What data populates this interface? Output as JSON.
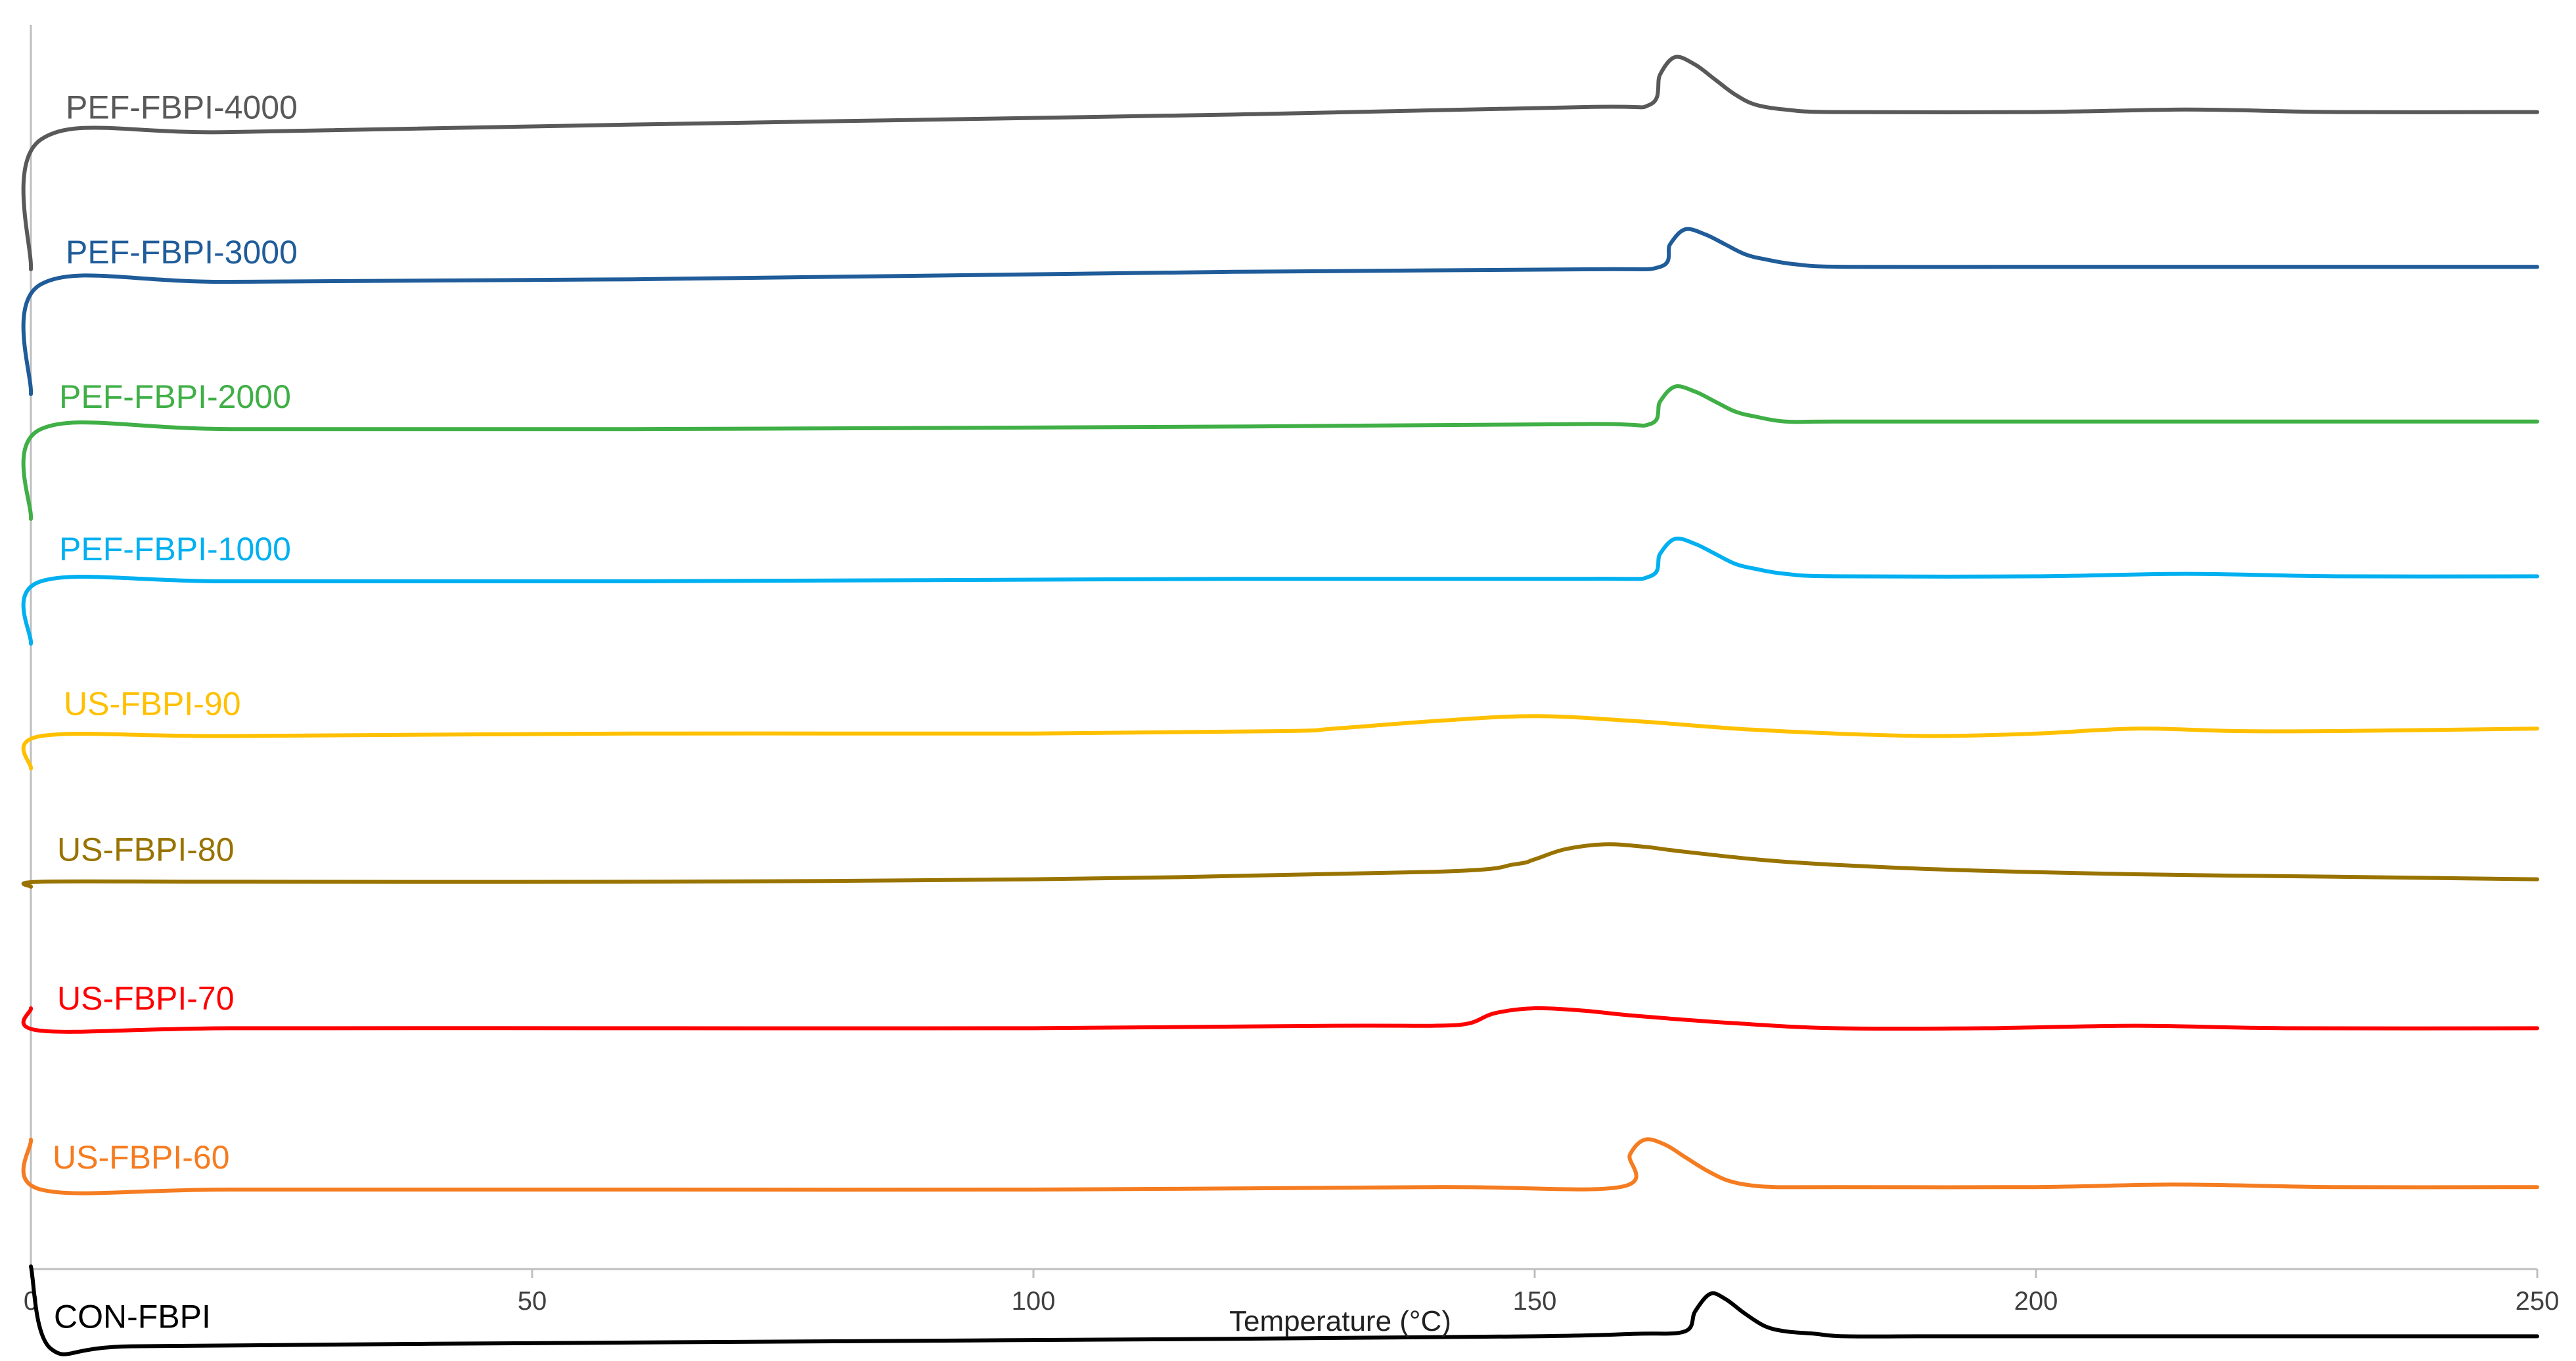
{
  "chart_data": {
    "type": "line",
    "title": "",
    "xlabel": "Temperature (°C)",
    "ylabel": "",
    "xlim": [
      0,
      250
    ],
    "xticks": [
      "0",
      "50",
      "100",
      "150",
      "200",
      "250"
    ],
    "grid": false,
    "legend": "inline labels at left of each curve",
    "series": [
      {
        "name": "PEF-FBPI-4000",
        "color": "#595959",
        "x": [
          0,
          1,
          20,
          60,
          120,
          155,
          161.5,
          162.5,
          164,
          166,
          168,
          170,
          172,
          175,
          180,
          200,
          215,
          230,
          250
        ],
        "y": [
          0.0,
          5.2,
          5.5,
          5.8,
          6.2,
          6.5,
          6.6,
          7.8,
          8.5,
          8.2,
          7.6,
          7.0,
          6.6,
          6.4,
          6.3,
          6.3,
          6.4,
          6.3,
          6.3
        ]
      },
      {
        "name": "PEF-FBPI-3000",
        "color": "#1F5C99",
        "x": [
          0,
          1,
          20,
          60,
          120,
          155,
          162.5,
          163.5,
          165,
          167,
          169,
          171,
          173,
          176,
          181,
          200,
          215,
          230,
          250
        ],
        "y": [
          0.0,
          4.4,
          4.5,
          4.6,
          4.9,
          5.0,
          5.1,
          6.0,
          6.6,
          6.4,
          6.0,
          5.6,
          5.4,
          5.2,
          5.1,
          5.1,
          5.1,
          5.1,
          5.1
        ]
      },
      {
        "name": "PEF-FBPI-2000",
        "color": "#3FAF46",
        "x": [
          0,
          1,
          20,
          60,
          120,
          155,
          161.5,
          162.5,
          164,
          166,
          168,
          170,
          172,
          175,
          180,
          200,
          215,
          230,
          250
        ],
        "y": [
          0.0,
          3.6,
          3.6,
          3.6,
          3.7,
          3.8,
          3.8,
          4.7,
          5.3,
          5.1,
          4.7,
          4.3,
          4.1,
          3.9,
          3.9,
          3.9,
          3.9,
          3.9,
          3.9
        ]
      },
      {
        "name": "PEF-FBPI-1000",
        "color": "#00B0F0",
        "x": [
          0,
          1,
          20,
          60,
          120,
          155,
          161.5,
          162.5,
          164,
          166,
          168,
          170,
          172,
          175,
          180,
          200,
          215,
          230,
          250
        ],
        "y": [
          0.0,
          2.5,
          2.5,
          2.5,
          2.6,
          2.6,
          2.7,
          3.6,
          4.2,
          4.0,
          3.6,
          3.2,
          3.0,
          2.8,
          2.7,
          2.7,
          2.8,
          2.7,
          2.7
        ]
      },
      {
        "name": "US-FBPI-90",
        "color": "#FFC000",
        "x": [
          0,
          1,
          20,
          60,
          100,
          125,
          130,
          140,
          150,
          160,
          170,
          180,
          190,
          200,
          210,
          220,
          230,
          250
        ],
        "y": [
          0.0,
          1.3,
          1.3,
          1.4,
          1.4,
          1.5,
          1.6,
          1.9,
          2.1,
          1.9,
          1.6,
          1.4,
          1.3,
          1.4,
          1.6,
          1.5,
          1.5,
          1.6
        ]
      },
      {
        "name": "US-FBPI-80",
        "color": "#997300",
        "x": [
          0,
          1,
          20,
          60,
          100,
          140,
          148,
          150,
          153,
          157,
          161,
          165,
          175,
          190,
          210,
          230,
          250
        ],
        "y": [
          0.0,
          0.2,
          0.2,
          0.2,
          0.3,
          0.6,
          0.9,
          1.1,
          1.5,
          1.7,
          1.6,
          1.4,
          1.0,
          0.7,
          0.5,
          0.4,
          0.3
        ]
      },
      {
        "name": "US-FBPI-70",
        "color": "#FF0000",
        "x": [
          0,
          1,
          20,
          60,
          100,
          130,
          140,
          143.5,
          146,
          150,
          155,
          160,
          170,
          180,
          195,
          210,
          225,
          250
        ],
        "y": [
          0.0,
          -0.9,
          -0.8,
          -0.8,
          -0.8,
          -0.7,
          -0.7,
          -0.6,
          -0.2,
          0.0,
          -0.1,
          -0.3,
          -0.6,
          -0.8,
          -0.8,
          -0.7,
          -0.8,
          -0.8
        ]
      },
      {
        "name": "US-FBPI-60",
        "color": "#F57C20",
        "x": [
          0,
          1,
          20,
          60,
          100,
          140,
          158.5,
          159.5,
          161,
          163,
          165,
          167,
          169,
          171,
          174,
          180,
          200,
          214,
          230,
          250
        ],
        "y": [
          0.0,
          -2.0,
          -2.0,
          -2.0,
          -2.0,
          -1.9,
          -1.9,
          -0.6,
          0.0,
          -0.2,
          -0.7,
          -1.2,
          -1.6,
          -1.8,
          -1.9,
          -1.9,
          -1.9,
          -1.8,
          -1.9,
          -1.9
        ]
      },
      {
        "name": "CON-FBPI",
        "color": "#000000",
        "x": [
          0,
          2,
          10,
          40,
          80,
          120,
          150,
          160,
          165,
          166,
          167.5,
          169,
          171,
          173,
          175,
          178,
          181,
          190,
          210,
          250
        ],
        "y": [
          0.0,
          -3.3,
          -3.2,
          -3.1,
          -3.0,
          -2.9,
          -2.8,
          -2.7,
          -2.6,
          -1.8,
          -1.1,
          -1.3,
          -1.9,
          -2.4,
          -2.6,
          -2.7,
          -2.8,
          -2.8,
          -2.8,
          -2.8
        ]
      }
    ]
  }
}
